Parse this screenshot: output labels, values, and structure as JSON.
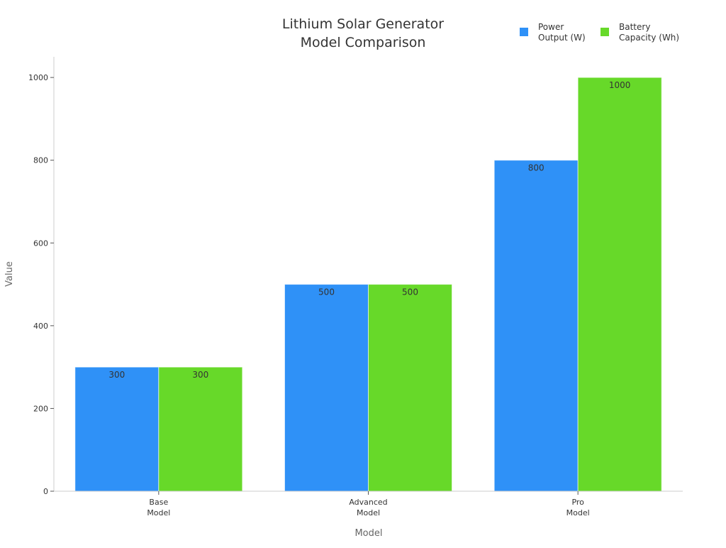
{
  "chart_data": {
    "type": "bar",
    "title_lines": [
      "Lithium Solar Generator",
      "Model Comparison"
    ],
    "xlabel": "Model",
    "ylabel": "Value",
    "categories": [
      [
        "Base",
        "Model"
      ],
      [
        "Advanced",
        "Model"
      ],
      [
        "Pro",
        "Model"
      ]
    ],
    "series": [
      {
        "name_lines": [
          "Power",
          "Output (W)"
        ],
        "color": "#2F91F7",
        "values": [
          300,
          500,
          800
        ]
      },
      {
        "name_lines": [
          "Battery",
          "Capacity (Wh)"
        ],
        "color": "#67D929",
        "values": [
          300,
          500,
          1000
        ]
      }
    ],
    "ylim": [
      0,
      1050
    ],
    "yticks": [
      0,
      200,
      400,
      600,
      800,
      1000
    ],
    "grid": false,
    "legend_position": "top-right",
    "data_labels": true
  }
}
